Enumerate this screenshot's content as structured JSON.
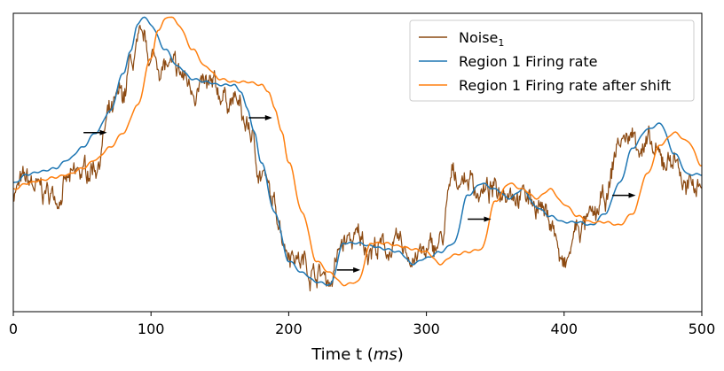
{
  "chart_data": {
    "type": "line",
    "xlabel_main": "Time t (",
    "xlabel_unit": "ms",
    "xlabel_close": ")",
    "xlim": [
      0,
      500
    ],
    "ylim": [
      0,
      1
    ],
    "x_ticks": [
      0,
      100,
      200,
      300,
      400,
      500
    ],
    "x_tick_labels": [
      "0",
      "100",
      "200",
      "300",
      "400",
      "500"
    ],
    "y_ticks_visible": false,
    "grid": false,
    "legend": {
      "placement": "top-right",
      "entries": [
        {
          "series": 0,
          "label": "Noise",
          "subscript": "1"
        },
        {
          "series": 1,
          "label": "Region 1 Firing rate",
          "subscript": ""
        },
        {
          "series": 2,
          "label": "Region 1 Firing rate after shift",
          "subscript": ""
        }
      ]
    },
    "series": [
      {
        "color": "#8c4a12",
        "noisy": true,
        "x": [
          0,
          10,
          20,
          30,
          40,
          50,
          60,
          70,
          80,
          85,
          90,
          95,
          100,
          110,
          120,
          130,
          140,
          150,
          160,
          170,
          180,
          190,
          200,
          210,
          220,
          230,
          240,
          250,
          260,
          270,
          280,
          290,
          300,
          310,
          320,
          330,
          340,
          350,
          360,
          370,
          380,
          390,
          400,
          410,
          420,
          430,
          440,
          450,
          460,
          470,
          480,
          490,
          500
        ],
        "y": [
          0.41,
          0.43,
          0.4,
          0.39,
          0.43,
          0.46,
          0.5,
          0.65,
          0.72,
          0.82,
          0.87,
          0.89,
          0.85,
          0.82,
          0.79,
          0.76,
          0.74,
          0.73,
          0.71,
          0.62,
          0.47,
          0.34,
          0.22,
          0.17,
          0.13,
          0.11,
          0.23,
          0.24,
          0.22,
          0.21,
          0.21,
          0.19,
          0.19,
          0.23,
          0.45,
          0.45,
          0.4,
          0.4,
          0.43,
          0.39,
          0.37,
          0.31,
          0.14,
          0.28,
          0.3,
          0.37,
          0.57,
          0.59,
          0.55,
          0.5,
          0.52,
          0.4,
          0.45
        ]
      },
      {
        "color": "#1f77b4",
        "noisy": false,
        "x": [
          0,
          10,
          20,
          30,
          40,
          50,
          60,
          70,
          80,
          85,
          90,
          95,
          100,
          110,
          120,
          130,
          140,
          150,
          160,
          165,
          170,
          175,
          180,
          190,
          200,
          210,
          220,
          230,
          240,
          250,
          260,
          270,
          280,
          290,
          300,
          310,
          320,
          330,
          340,
          350,
          360,
          370,
          380,
          390,
          400,
          410,
          420,
          430,
          440,
          450,
          460,
          470,
          480,
          490,
          500
        ],
        "y": [
          0.43,
          0.46,
          0.47,
          0.48,
          0.51,
          0.55,
          0.6,
          0.67,
          0.8,
          0.87,
          0.96,
          0.99,
          0.96,
          0.88,
          0.82,
          0.78,
          0.77,
          0.76,
          0.76,
          0.74,
          0.68,
          0.6,
          0.5,
          0.33,
          0.17,
          0.13,
          0.1,
          0.09,
          0.23,
          0.23,
          0.22,
          0.21,
          0.2,
          0.16,
          0.18,
          0.2,
          0.23,
          0.39,
          0.43,
          0.41,
          0.38,
          0.41,
          0.35,
          0.32,
          0.3,
          0.3,
          0.29,
          0.33,
          0.43,
          0.55,
          0.61,
          0.63,
          0.53,
          0.46,
          0.46
        ]
      },
      {
        "color": "#ff7f0e",
        "noisy": false,
        "x": [
          0,
          10,
          20,
          30,
          40,
          50,
          60,
          70,
          80,
          90,
          100,
          105,
          110,
          115,
          120,
          130,
          140,
          150,
          160,
          170,
          180,
          185,
          190,
          195,
          200,
          210,
          220,
          230,
          240,
          250,
          260,
          270,
          280,
          290,
          300,
          310,
          320,
          330,
          340,
          350,
          360,
          370,
          380,
          390,
          400,
          410,
          420,
          430,
          440,
          450,
          460,
          470,
          480,
          490,
          500
        ],
        "y": [
          0.41,
          0.43,
          0.44,
          0.45,
          0.46,
          0.48,
          0.51,
          0.55,
          0.6,
          0.69,
          0.85,
          0.94,
          0.98,
          0.99,
          0.96,
          0.88,
          0.82,
          0.78,
          0.77,
          0.77,
          0.76,
          0.74,
          0.68,
          0.6,
          0.5,
          0.33,
          0.17,
          0.13,
          0.09,
          0.1,
          0.23,
          0.23,
          0.22,
          0.21,
          0.2,
          0.16,
          0.19,
          0.2,
          0.21,
          0.37,
          0.43,
          0.41,
          0.38,
          0.41,
          0.36,
          0.32,
          0.3,
          0.3,
          0.29,
          0.33,
          0.46,
          0.56,
          0.6,
          0.57,
          0.49
        ]
      }
    ],
    "annotations": [
      {
        "type": "arrow",
        "x0": 51,
        "x1": 68,
        "y": 0.6
      },
      {
        "type": "arrow",
        "x0": 171,
        "x1": 188,
        "y": 0.65
      },
      {
        "type": "arrow",
        "x0": 235,
        "x1": 252,
        "y": 0.14
      },
      {
        "type": "arrow",
        "x0": 330,
        "x1": 347,
        "y": 0.31
      },
      {
        "type": "arrow",
        "x0": 435,
        "x1": 452,
        "y": 0.39
      }
    ]
  }
}
